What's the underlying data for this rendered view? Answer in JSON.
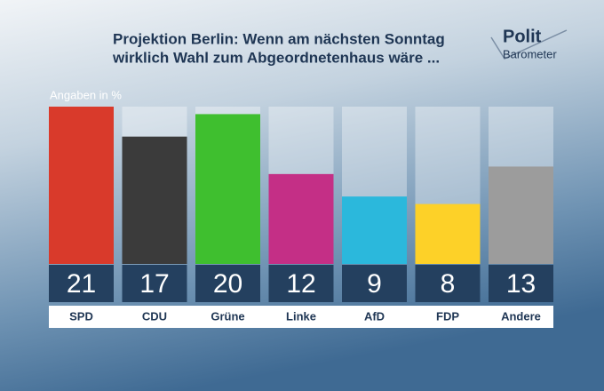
{
  "chart_data": {
    "type": "bar",
    "title": [
      "Projektion Berlin: Wenn am nächsten Sonntag",
      "wirklich Wahl zum Abgeordnetenhaus wäre ..."
    ],
    "subtitle": "Angaben in %",
    "categories": [
      "SPD",
      "CDU",
      "Grüne",
      "Linke",
      "AfD",
      "FDP",
      "Andere"
    ],
    "values": [
      21,
      17,
      20,
      12,
      9,
      8,
      13
    ],
    "colors": [
      "#d93a2b",
      "#3b3b3b",
      "#3fbf2f",
      "#c42f86",
      "#2bb8dc",
      "#fdd128",
      "#9c9c9c"
    ],
    "ylim": [
      0,
      21
    ]
  },
  "logo": {
    "line1": "Polit",
    "line2": "Barometer"
  }
}
